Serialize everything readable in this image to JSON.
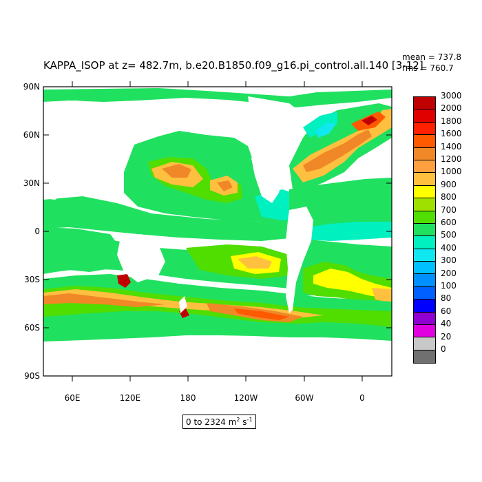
{
  "title": "KAPPA_ISOP at z= 482.7m, b.e20.B1850.f09_g16.pi_control.all.140 [3-12]",
  "stats": {
    "mean": "mean = 737.8",
    "rms": "rms = 760.7"
  },
  "map": {
    "lat_labels": [
      "90N",
      "60N",
      "30N",
      "0",
      "30S",
      "60S",
      "90S"
    ],
    "lon_labels": [
      "60E",
      "120E",
      "180",
      "120W",
      "60W",
      "0"
    ],
    "range_text": "0 to 2324",
    "units": "m",
    "units_exp1": "2",
    "units_mid": " s",
    "units_exp2": "-1"
  },
  "colorbar": {
    "labels": [
      "3000",
      "2000",
      "1800",
      "1600",
      "1400",
      "1200",
      "1000",
      "900",
      "800",
      "700",
      "600",
      "500",
      "400",
      "300",
      "200",
      "100",
      "80",
      "60",
      "40",
      "20",
      "0"
    ],
    "colors": [
      "#c00000",
      "#e00000",
      "#ff2000",
      "#ff5a00",
      "#f08828",
      "#ffa040",
      "#ffc040",
      "#ffff00",
      "#a0e000",
      "#50dd00",
      "#20e060",
      "#00f0c0",
      "#10e8f0",
      "#00c0ff",
      "#0090ff",
      "#0060ff",
      "#0000ff",
      "#9000d0",
      "#e000e0",
      "#c8c8c8",
      "#707070"
    ]
  }
}
